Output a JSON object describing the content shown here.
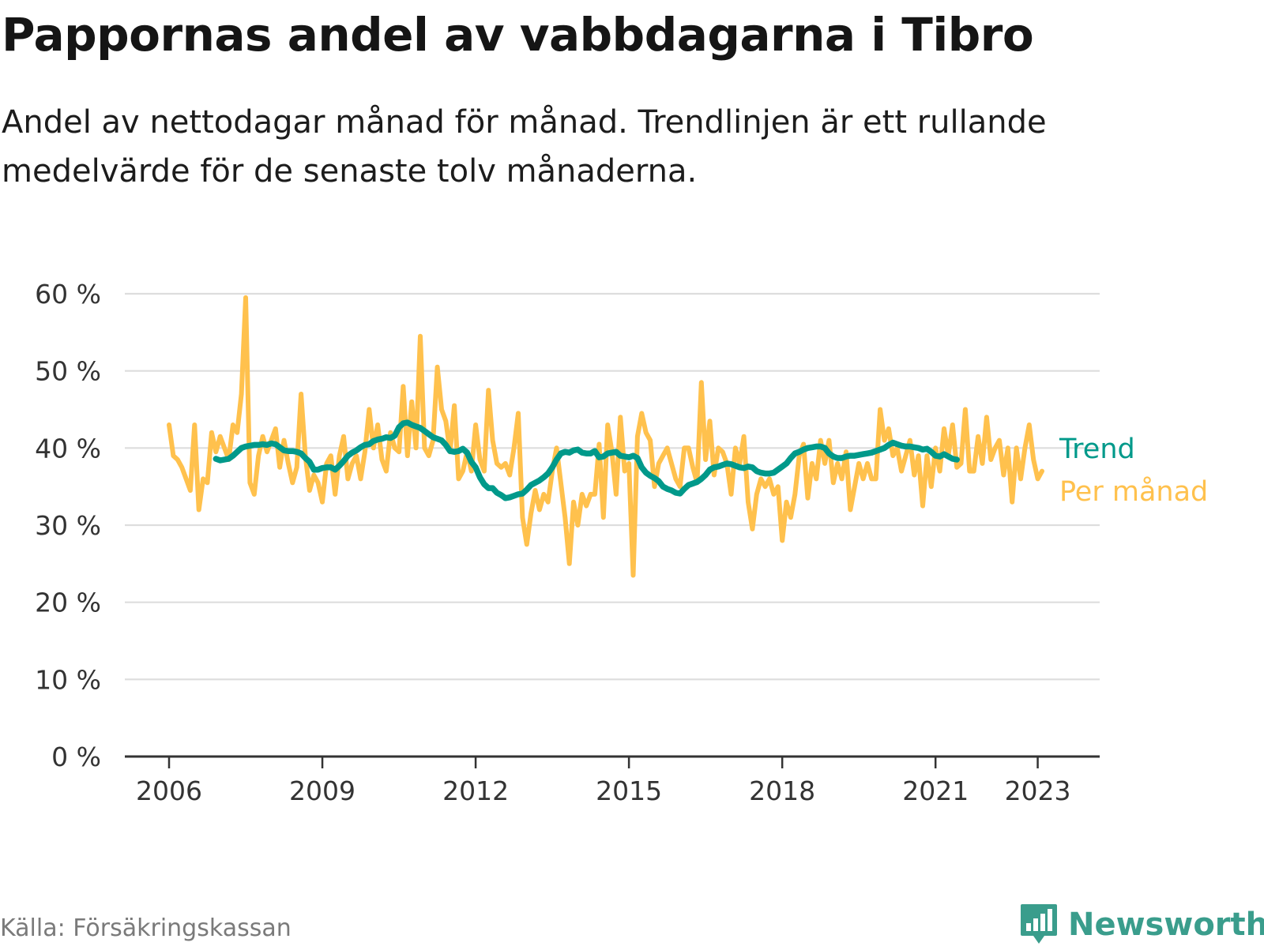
{
  "header": {
    "title": "Pappornas andel av vabbdagarna i Tibro",
    "subtitle": "Andel av nettodagar månad för månad. Trendlinjen är ett rullande medelvärde för de senaste tolv månaderna."
  },
  "footer": {
    "source": "Källa: Försäkringskassan",
    "brand": "Newsworthy",
    "brand_icon": "bar-chart-speech-bubble-icon"
  },
  "colors": {
    "monthly": "#FFC14D",
    "trend": "#00998A",
    "grid": "#dddddd",
    "axis": "#333333",
    "brand": "#3a9d8c"
  },
  "chart_data": {
    "type": "line",
    "title": "Pappornas andel av vabbdagarna i Tibro",
    "xlabel": "",
    "ylabel": "",
    "x_start": "2006-01",
    "x_ticks": [
      "2006",
      "2009",
      "2012",
      "2015",
      "2018",
      "2021",
      "2023"
    ],
    "y_ticks": [
      "0 %",
      "10 %",
      "20 %",
      "30 %",
      "40 %",
      "50 %",
      "60 %"
    ],
    "ylim": [
      0,
      60
    ],
    "grid": true,
    "legend": "inline-right",
    "series": [
      {
        "name": "Per månad",
        "unit": "%",
        "values": [
          43,
          39,
          38.5,
          37.5,
          36,
          34.5,
          43,
          32,
          36,
          35.5,
          42,
          39.5,
          41.5,
          40,
          38.5,
          43,
          42,
          47,
          59.5,
          35.5,
          34,
          39,
          41.5,
          39.5,
          41,
          42.5,
          37.5,
          41,
          38,
          35.5,
          37.5,
          47,
          39,
          34.5,
          36.5,
          35.5,
          33,
          38,
          39,
          34,
          39,
          41.5,
          36,
          38,
          39,
          36,
          39.5,
          45,
          40,
          43,
          38.5,
          37,
          42,
          40,
          39.5,
          48,
          39,
          46,
          40,
          54.5,
          40,
          39,
          41,
          50.5,
          45,
          43.5,
          39.5,
          45.5,
          36,
          37,
          39.5,
          37,
          43,
          38.5,
          37,
          47.5,
          41,
          38,
          37.5,
          38,
          36.5,
          40,
          44.5,
          31,
          27.5,
          31.5,
          34.5,
          32,
          34,
          33,
          37,
          40,
          35.5,
          31,
          25,
          33,
          30,
          34,
          32.5,
          34,
          34,
          40.5,
          31,
          43,
          39.5,
          34,
          44,
          37,
          38,
          23.5,
          41.5,
          44.5,
          42,
          41,
          35,
          38,
          39,
          40,
          38,
          36,
          35,
          40,
          40,
          37.5,
          35.5,
          48.5,
          38.5,
          43.5,
          36.5,
          40,
          39.5,
          38,
          34,
          40,
          38,
          41.5,
          33,
          29.5,
          34,
          36,
          35,
          36,
          34,
          35,
          28,
          33,
          31,
          34,
          39,
          40.5,
          33.5,
          38,
          36,
          41,
          38,
          41,
          35.5,
          38,
          36,
          39.5,
          32,
          35,
          38,
          36,
          38,
          36,
          36,
          45,
          41,
          42.5,
          39,
          40,
          37,
          39,
          41,
          36.5,
          39,
          32.5,
          39,
          35,
          40,
          37,
          42.5,
          39,
          43,
          37.5,
          38,
          45,
          37,
          37,
          41.5,
          38,
          44,
          38.5,
          40,
          41,
          36.5,
          40,
          33,
          40,
          36,
          40,
          43,
          38.5,
          36,
          37
        ]
      },
      {
        "name": "Trend",
        "unit": "%",
        "start_index": 11,
        "values": [
          38.6,
          38.4,
          38.5,
          38.6,
          39.0,
          39.5,
          40.0,
          40.2,
          40.3,
          40.4,
          40.4,
          40.5,
          40.4,
          40.6,
          40.5,
          40.1,
          39.7,
          39.6,
          39.6,
          39.5,
          39.3,
          38.7,
          38.2,
          37.2,
          37.2,
          37.4,
          37.5,
          37.5,
          37.2,
          37.7,
          38.3,
          39.0,
          39.4,
          39.7,
          40.1,
          40.4,
          40.5,
          40.9,
          41.1,
          41.2,
          41.4,
          41.3,
          41.6,
          42.7,
          43.2,
          43.3,
          43.0,
          42.8,
          42.6,
          42.2,
          41.8,
          41.4,
          41.2,
          41.0,
          40.4,
          39.6,
          39.5,
          39.6,
          39.9,
          39.4,
          38.2,
          37.5,
          36.2,
          35.3,
          34.8,
          34.8,
          34.2,
          33.9,
          33.5,
          33.6,
          33.8,
          34.0,
          34.1,
          34.6,
          35.2,
          35.5,
          35.8,
          36.2,
          36.7,
          37.5,
          38.5,
          39.3,
          39.5,
          39.4,
          39.7,
          39.8,
          39.4,
          39.3,
          39.3,
          39.6,
          38.8,
          38.9,
          39.3,
          39.4,
          39.5,
          39.0,
          38.9,
          38.8,
          39.0,
          38.7,
          37.5,
          36.8,
          36.4,
          36.1,
          35.7,
          35.0,
          34.7,
          34.5,
          34.2,
          34.1,
          34.7,
          35.2,
          35.4,
          35.6,
          36.0,
          36.5,
          37.2,
          37.5,
          37.6,
          37.8,
          38.0,
          37.9,
          37.7,
          37.5,
          37.4,
          37.6,
          37.5,
          37.0,
          36.8,
          36.7,
          36.7,
          36.8,
          37.2,
          37.6,
          38.0,
          38.7,
          39.3,
          39.5,
          39.8,
          40.0,
          40.1,
          40.2,
          40.2,
          40.0,
          39.3,
          38.9,
          38.7,
          38.7,
          38.9,
          39.0,
          39.0,
          39.1,
          39.2,
          39.3,
          39.4,
          39.6,
          39.8,
          40.0,
          40.4,
          40.7,
          40.5,
          40.3,
          40.2,
          40.2,
          40.1,
          40.0,
          39.8,
          39.9,
          39.5,
          39.0,
          38.9,
          39.2,
          38.9,
          38.6,
          38.5
        ]
      }
    ]
  }
}
